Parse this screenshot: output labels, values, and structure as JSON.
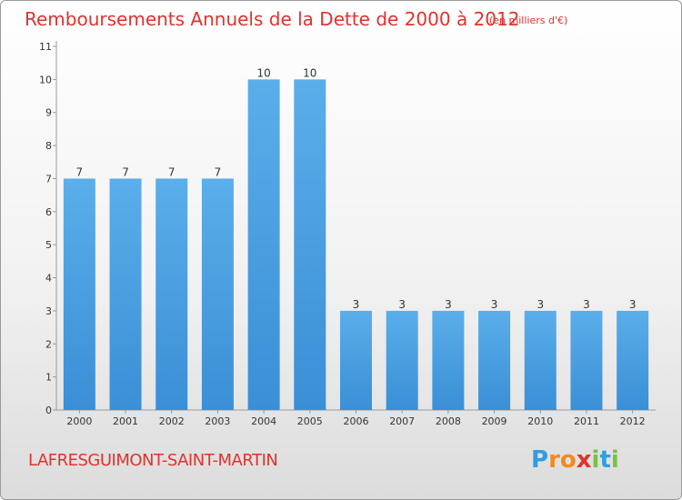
{
  "title": "Remboursements Annuels de la Dette de 2000 à 2012",
  "subtitle": "(en milliers d'€)",
  "place": "LAFRESGUIMONT-SAINT-MARTIN",
  "logo": {
    "letters": [
      "P",
      "r",
      "o",
      "x",
      "i",
      "t",
      "i"
    ],
    "colors": [
      "#2e9ee0",
      "#f28a1e",
      "#f28a1e",
      "#e0322e",
      "#7ac142",
      "#2e9ee0",
      "#7ac142"
    ]
  },
  "colors": {
    "bar": "#3a8fd6",
    "bar_light": "#5aaeea",
    "title": "#e0322e"
  },
  "chart_data": {
    "type": "bar",
    "title": "Remboursements Annuels de la Dette de 2000 à 2012",
    "categories": [
      "2000",
      "2001",
      "2002",
      "2003",
      "2004",
      "2005",
      "2006",
      "2007",
      "2008",
      "2009",
      "2010",
      "2011",
      "2012"
    ],
    "values": [
      7,
      7,
      7,
      7,
      10,
      10,
      3,
      3,
      3,
      3,
      3,
      3,
      3
    ],
    "yticks": [
      0,
      1,
      2,
      3,
      4,
      5,
      6,
      7,
      8,
      9,
      10,
      11
    ],
    "ylim": [
      0,
      11
    ],
    "xlabel": "",
    "ylabel": "",
    "grid": false
  }
}
